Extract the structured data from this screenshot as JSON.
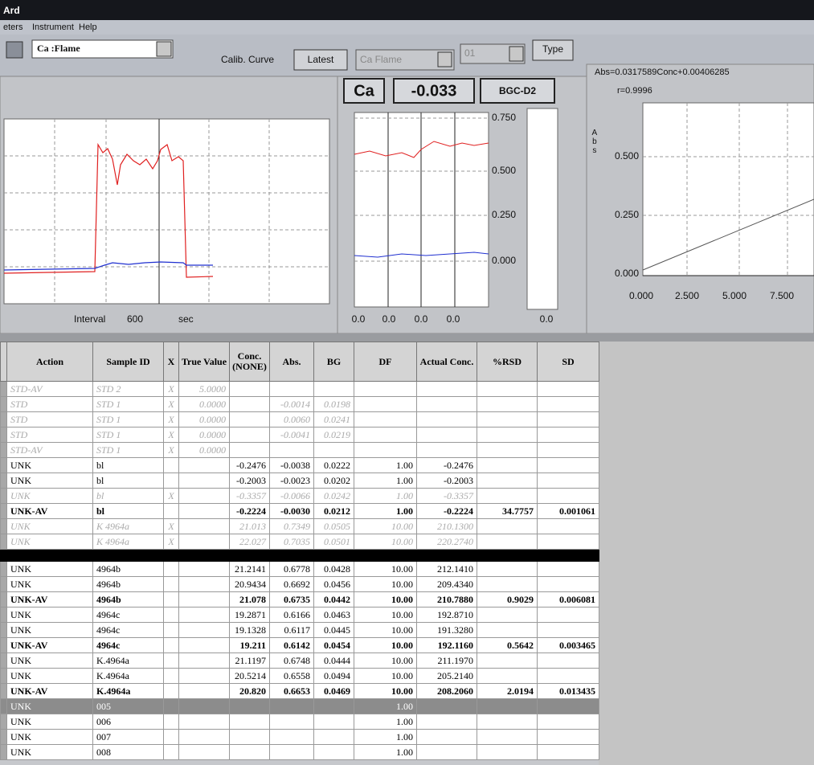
{
  "window": {
    "title": "Ard",
    "menu": [
      "eters",
      "Instrument",
      "Help"
    ]
  },
  "toolbar": {
    "element": "Ca :Flame",
    "calib_label": "Calib. Curve",
    "latest": "Latest",
    "method": "Ca Flame",
    "number": "01",
    "type": "Type"
  },
  "signal_panel": {
    "interval_label": "Interval",
    "interval": "600",
    "unit": "sec"
  },
  "reading_panel": {
    "element": "Ca",
    "reading": "-0.033",
    "mode": "BGC-D2",
    "yticks": [
      "0.750",
      "0.500",
      "0.250",
      "0.000"
    ],
    "xticks": [
      "0.0",
      "0.0",
      "0.0",
      "0.0"
    ],
    "bar_xtick": "0.0"
  },
  "calibration_panel": {
    "equation": "Abs=0.0317589Conc+0.00406285",
    "r": "r=0.9996",
    "ylabel": "Abs",
    "yticks": [
      "0.500",
      "0.250",
      "0.000"
    ],
    "xticks": [
      "0.000",
      "2.500",
      "5.000",
      "7.500"
    ]
  },
  "table": {
    "headers": [
      "Action",
      "Sample ID",
      "X",
      "True Value",
      "Conc. (NONE)",
      "Abs.",
      "BG",
      "DF",
      "Actual Conc.",
      "%RSD",
      "SD"
    ],
    "rows": [
      [
        "STD-AV",
        "STD 2",
        "X",
        "5.0000",
        null,
        null,
        null,
        null,
        null,
        null,
        null
      ],
      [
        "STD",
        "STD 1",
        "X",
        "0.0000",
        null,
        "-0.0014",
        "0.0198",
        null,
        null,
        null,
        null
      ],
      [
        "STD",
        "STD 1",
        "X",
        "0.0000",
        null,
        "0.0060",
        "0.0241",
        null,
        null,
        null,
        null
      ],
      [
        "STD",
        "STD 1",
        "X",
        "0.0000",
        null,
        "-0.0041",
        "0.0219",
        null,
        null,
        null,
        null
      ],
      [
        "STD-AV",
        "STD 1",
        "X",
        "0.0000",
        null,
        null,
        null,
        null,
        null,
        null,
        null
      ],
      [
        "UNK",
        "bl",
        null,
        null,
        "-0.2476",
        "-0.0038",
        "0.0222",
        "1.00",
        "-0.2476",
        null,
        null
      ],
      [
        "UNK",
        "bl",
        null,
        null,
        "-0.2003",
        "-0.0023",
        "0.0202",
        "1.00",
        "-0.2003",
        null,
        null
      ],
      [
        "UNK",
        "bl",
        "X",
        null,
        "-0.3357",
        "-0.0066",
        "0.0242",
        "1.00",
        "-0.3357",
        null,
        null
      ],
      [
        "UNK-AV",
        "bl",
        null,
        null,
        "-0.2224",
        "-0.0030",
        "0.0212",
        "1.00",
        "-0.2224",
        "34.7757",
        "0.001061"
      ],
      [
        "UNK",
        "K 4964a",
        "X",
        null,
        "21.013",
        "0.7349",
        "0.0505",
        "10.00",
        "210.1300",
        null,
        null
      ],
      [
        "UNK",
        "K 4964a",
        "X",
        null,
        "22.027",
        "0.7035",
        "0.0501",
        "10.00",
        "220.2740",
        null,
        null
      ],
      [
        "UNK",
        "4964b",
        null,
        null,
        "21.2141",
        "0.6778",
        "0.0428",
        "10.00",
        "212.1410",
        null,
        null
      ],
      [
        "UNK",
        "4964b",
        null,
        null,
        "20.9434",
        "0.6692",
        "0.0456",
        "10.00",
        "209.4340",
        null,
        null
      ],
      [
        "UNK-AV",
        "4964b",
        null,
        null,
        "21.078",
        "0.6735",
        "0.0442",
        "10.00",
        "210.7880",
        "0.9029",
        "0.006081"
      ],
      [
        "UNK",
        "4964c",
        null,
        null,
        "19.2871",
        "0.6166",
        "0.0463",
        "10.00",
        "192.8710",
        null,
        null
      ],
      [
        "UNK",
        "4964c",
        null,
        null,
        "19.1328",
        "0.6117",
        "0.0445",
        "10.00",
        "191.3280",
        null,
        null
      ],
      [
        "UNK-AV",
        "4964c",
        null,
        null,
        "19.211",
        "0.6142",
        "0.0454",
        "10.00",
        "192.1160",
        "0.5642",
        "0.003465"
      ],
      [
        "UNK",
        "K.4964a",
        null,
        null,
        "21.1197",
        "0.6748",
        "0.0444",
        "10.00",
        "211.1970",
        null,
        null
      ],
      [
        "UNK",
        "K.4964a",
        null,
        null,
        "20.5214",
        "0.6558",
        "0.0494",
        "10.00",
        "205.2140",
        null,
        null
      ],
      [
        "UNK-AV",
        "K.4964a",
        null,
        null,
        "20.820",
        "0.6653",
        "0.0469",
        "10.00",
        "208.2060",
        "2.0194",
        "0.013435"
      ],
      [
        "UNK",
        "005",
        null,
        null,
        null,
        null,
        null,
        "1.00",
        null,
        null,
        null
      ],
      [
        "UNK",
        "006",
        null,
        null,
        null,
        null,
        null,
        "1.00",
        null,
        null,
        null
      ],
      [
        "UNK",
        "007",
        null,
        null,
        null,
        null,
        null,
        "1.00",
        null,
        null,
        null
      ],
      [
        "UNK",
        "008",
        null,
        null,
        null,
        null,
        null,
        "1.00",
        null,
        null,
        null
      ]
    ]
  }
}
